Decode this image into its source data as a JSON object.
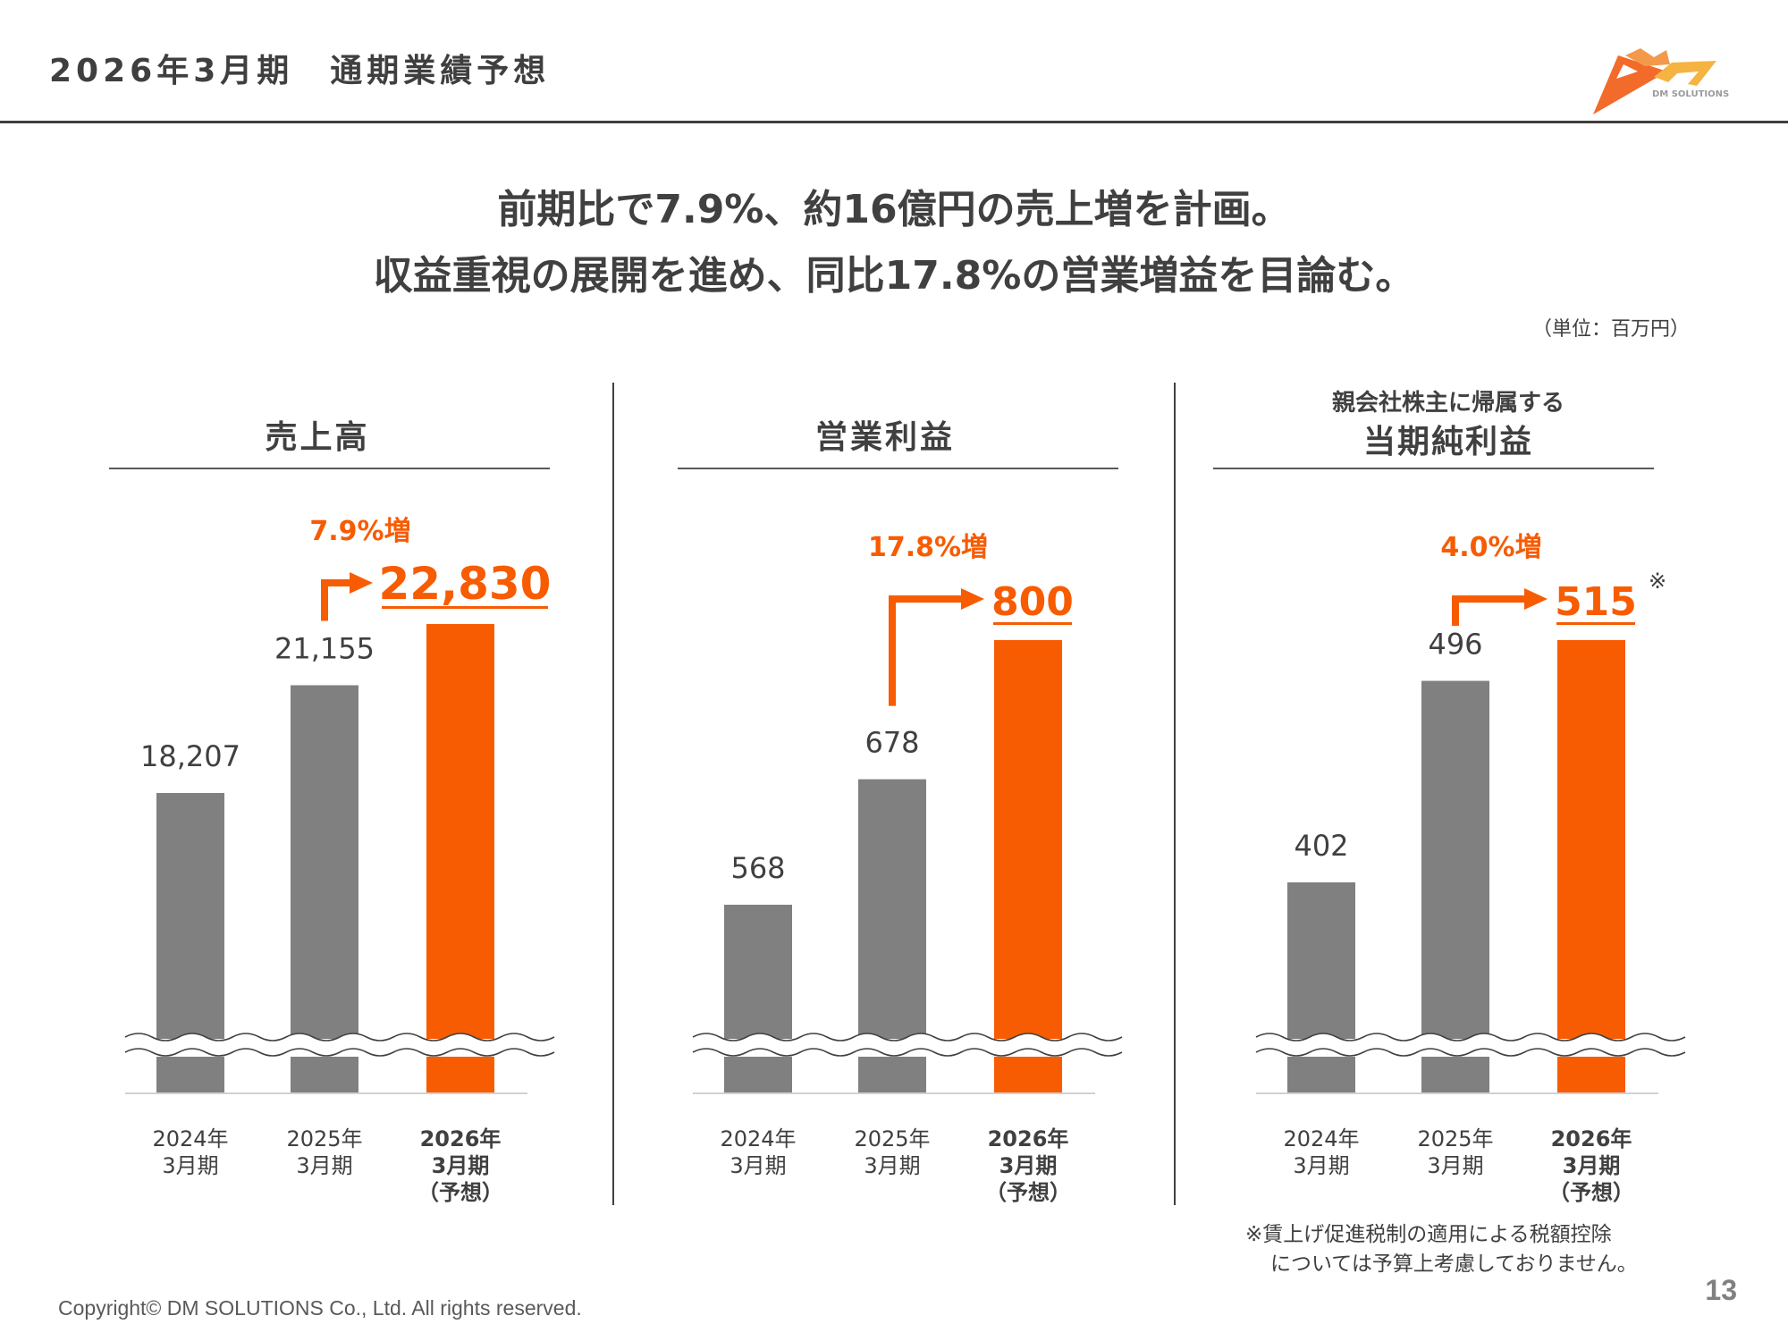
{
  "header": {
    "title": "2026年3月期　通期業績予想",
    "logo_text": "DM SOLUTIONS"
  },
  "headline": {
    "line1": "前期比で7.9%、約16億円の売上増を計画。",
    "line2": "収益重視の展開を進め、同比17.8%の営業増益を目論む。"
  },
  "unit_label": "（単位：百万円）",
  "colors": {
    "actual_bar": "#808080",
    "forecast_bar": "#F75C03",
    "accent": "#F75C03",
    "text": "#404040"
  },
  "chart_data": [
    {
      "type": "bar",
      "title": "売上高",
      "subtitle": "",
      "categories": [
        "2024年\n3月期",
        "2025年\n3月期",
        "2026年\n3月期\n（予想）"
      ],
      "values": [
        18207,
        21155,
        22830
      ],
      "value_labels": [
        "18,207",
        "21,155",
        "22,830"
      ],
      "forecast_index": 2,
      "growth_label": "7.9%増",
      "axis_break": true,
      "note_mark": ""
    },
    {
      "type": "bar",
      "title": "営業利益",
      "subtitle": "",
      "categories": [
        "2024年\n3月期",
        "2025年\n3月期",
        "2026年\n3月期\n（予想）"
      ],
      "values": [
        568,
        678,
        800
      ],
      "value_labels": [
        "568",
        "678",
        "800"
      ],
      "forecast_index": 2,
      "growth_label": "17.8%増",
      "axis_break": true,
      "note_mark": ""
    },
    {
      "type": "bar",
      "title": "当期純利益",
      "subtitle": "親会社株主に帰属する",
      "categories": [
        "2024年\n3月期",
        "2025年\n3月期",
        "2026年\n3月期\n（予想）"
      ],
      "values": [
        402,
        496,
        515
      ],
      "value_labels": [
        "402",
        "496",
        "515"
      ],
      "forecast_index": 2,
      "growth_label": "4.0%増",
      "axis_break": true,
      "note_mark": "※"
    }
  ],
  "footnote": {
    "line1": "※賃上げ促進税制の適用による税額控除",
    "line2": "については予算上考慮しておりません。"
  },
  "footer": {
    "page_number": "13",
    "copyright": "Copyright© DM SOLUTIONS Co., Ltd. All rights reserved."
  }
}
